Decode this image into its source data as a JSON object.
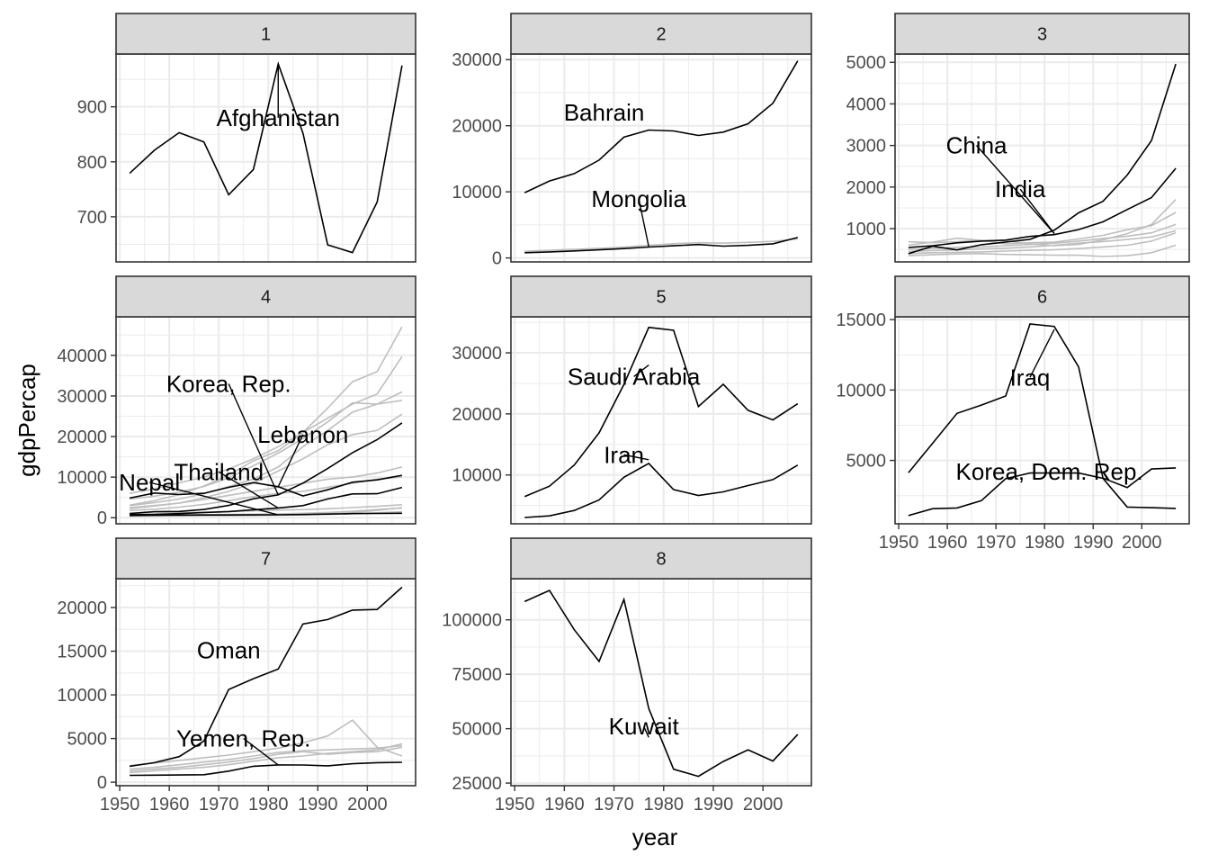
{
  "chart_data": {
    "type": "line",
    "xlabel": "year",
    "ylabel": "gdpPercap",
    "colors": {
      "highlight": "#000000",
      "background": "#bebebe",
      "strip": "#d9d9d9",
      "grid": "#ebebeb",
      "axis_text": "#4d4d4d"
    },
    "years": [
      1952,
      1957,
      1962,
      1967,
      1972,
      1977,
      1982,
      1987,
      1992,
      1997,
      2002,
      2007
    ],
    "x_ticks": [
      1950,
      1960,
      1970,
      1980,
      1990,
      2000
    ],
    "xlim": [
      1949.25,
      2009.75
    ],
    "panels": [
      {
        "strip": "1",
        "ylim": [
          618,
          996
        ],
        "y_ticks": [
          700,
          800,
          900
        ],
        "y_tick_labels": [
          "700",
          "800",
          "900"
        ],
        "highlight": [
          {
            "name": "Afghanistan",
            "values": [
              779,
              821,
              853,
              836,
              740,
              786,
              978,
              852,
              649,
              635,
              727,
              975
            ]
          }
        ],
        "background": [],
        "labels": [
          {
            "text": "Afghanistan",
            "x": 1982,
            "y": 880,
            "target_x": 1982,
            "target_y": 978
          }
        ]
      },
      {
        "strip": "2",
        "ylim": [
          -600,
          30850
        ],
        "y_ticks": [
          0,
          10000,
          20000,
          30000
        ],
        "y_tick_labels": [
          "0",
          "10000",
          "20000",
          "30000"
        ],
        "highlight": [
          {
            "name": "Bahrain",
            "values": [
              9867,
              11636,
              12753,
              14805,
              18269,
              19340,
              19211,
              18524,
              19036,
              20292,
              23404,
              29796
            ]
          },
          {
            "name": "Mongolia",
            "values": [
              786,
              912,
              1056,
              1226,
              1421,
              1648,
              1837,
              2024,
              1786,
              1902,
              2140,
              3096
            ]
          }
        ],
        "background": [
          [
            1000,
            1150,
            1300,
            1450,
            1650,
            1900,
            2150,
            2300,
            2250,
            2350,
            2500,
            2900
          ]
        ],
        "labels": [
          {
            "text": "Bahrain",
            "x": 1968,
            "y": 22000,
            "target_x": null,
            "target_y": null
          },
          {
            "text": "Mongolia",
            "x": 1975,
            "y": 8900,
            "target_x": 1977,
            "target_y": 1700
          }
        ]
      },
      {
        "strip": "3",
        "ylim": [
          200,
          5200
        ],
        "y_ticks": [
          1000,
          2000,
          3000,
          4000,
          5000
        ],
        "y_tick_labels": [
          "1000",
          "2000",
          "3000",
          "4000",
          "5000"
        ],
        "highlight": [
          {
            "name": "China",
            "values": [
              400,
              576,
              488,
              613,
              677,
              741,
              962,
              1379,
              1656,
              2289,
              3119,
              4959
            ]
          },
          {
            "name": "India",
            "values": [
              547,
              590,
              658,
              701,
              724,
              813,
              856,
              977,
              1164,
              1459,
              1747,
              2452
            ]
          }
        ],
        "background": [
          [
            684,
            662,
            686,
            722,
            630,
            660,
            677,
            751,
            838,
            973,
            1072,
            1391
          ],
          [
            605,
            677,
            770,
            717,
            708,
            630,
            590,
            620,
            730,
            880,
            1100,
            1700
          ],
          [
            500,
            520,
            550,
            560,
            590,
            620,
            650,
            700,
            760,
            820,
            900,
            1100
          ],
          [
            450,
            470,
            490,
            510,
            530,
            560,
            600,
            650,
            690,
            740,
            800,
            950
          ],
          [
            400,
            420,
            430,
            440,
            460,
            480,
            490,
            520,
            560,
            600,
            700,
            900
          ],
          [
            350,
            370,
            390,
            400,
            380,
            370,
            360,
            360,
            330,
            350,
            420,
            600
          ]
        ],
        "labels": [
          {
            "text": "China",
            "x": 1966,
            "y": 3000,
            "target_x": 1982,
            "target_y": 880
          },
          {
            "text": "India",
            "x": 1975,
            "y": 1950,
            "target_x": 1982,
            "target_y": 880
          }
        ]
      },
      {
        "strip": "4",
        "ylim": [
          -1500,
          49500
        ],
        "y_ticks": [
          0,
          10000,
          20000,
          30000,
          40000
        ],
        "y_tick_labels": [
          "0",
          "10000",
          "20000",
          "30000",
          "40000"
        ],
        "highlight": [
          {
            "name": "Korea, Rep.",
            "values": [
              1031,
              1488,
              1536,
              2029,
              3031,
              4657,
              5623,
              8533,
              12104,
              15994,
              19234,
              23348
            ]
          },
          {
            "name": "Lebanon",
            "values": [
              4835,
              6090,
              5716,
              6006,
              7486,
              8659,
              7641,
              5377,
              6891,
              8755,
              9314,
              10461
            ]
          },
          {
            "name": "Thailand",
            "values": [
              758,
              793,
              1002,
              1296,
              1524,
              1961,
              2393,
              2982,
              4617,
              5853,
              5914,
              7458
            ]
          },
          {
            "name": "Nepal",
            "values": [
              546,
              598,
              652,
              677,
              674,
              695,
              719,
              776,
              898,
              1011,
              1057,
              1091
            ]
          }
        ],
        "background": [
          [
            3100,
            4200,
            5700,
            7800,
            10500,
            14000,
            16500,
            21000,
            27000,
            33500,
            36000,
            47000
          ],
          [
            6000,
            7100,
            8600,
            10000,
            12000,
            14500,
            17500,
            21000,
            24500,
            28000,
            30500,
            39700
          ],
          [
            3000,
            3700,
            4600,
            5900,
            7700,
            9500,
            12500,
            17500,
            21500,
            26000,
            28000,
            31000
          ],
          [
            4600,
            5300,
            6300,
            7700,
            9800,
            12800,
            15900,
            19500,
            23600,
            28300,
            28000,
            28900
          ],
          [
            2300,
            2900,
            3600,
            4900,
            6500,
            8500,
            11500,
            14500,
            18000,
            20500,
            21500,
            25500
          ],
          [
            2500,
            3000,
            3600,
            4500,
            5500,
            6500,
            7500,
            8500,
            9500,
            10000,
            11000,
            12500
          ],
          [
            1800,
            2100,
            2600,
            3300,
            4200,
            5200,
            6000,
            6500,
            7500,
            8500,
            9500,
            10000
          ],
          [
            1000,
            1100,
            1200,
            1300,
            1500,
            1700,
            1900,
            2000,
            2200,
            2500,
            2800,
            3200
          ],
          [
            600,
            650,
            700,
            750,
            800,
            850,
            950,
            1100,
            1300,
            1600,
            2000,
            2400
          ],
          [
            500,
            550,
            600,
            650,
            700,
            750,
            800,
            900,
            1000,
            1300,
            1800,
            2500
          ],
          [
            400,
            420,
            450,
            480,
            500,
            550,
            600,
            700,
            800,
            1000,
            1200,
            1500
          ]
        ],
        "labels": [
          {
            "text": "Korea, Rep.",
            "x": 1972,
            "y": 33000,
            "target_x": 1982,
            "target_y": 5623
          },
          {
            "text": "Lebanon",
            "x": 1987,
            "y": 20500,
            "target_x": 1982,
            "target_y": 7641
          },
          {
            "text": "Thailand",
            "x": 1970,
            "y": 11300,
            "target_x": 1982,
            "target_y": 2393
          },
          {
            "text": "Nepal",
            "x": 1956,
            "y": 8700,
            "target_x": 1982,
            "target_y": 719
          }
        ]
      },
      {
        "strip": "5",
        "ylim": [
          2000,
          35900
        ],
        "y_ticks": [
          10000,
          20000,
          30000
        ],
        "y_tick_labels": [
          "10000",
          "20000",
          "30000"
        ],
        "highlight": [
          {
            "name": "Saudi Arabia",
            "values": [
              6460,
              8157,
              11627,
              16903,
              24837,
              34168,
              33693,
              21199,
              24841,
              20586,
              19014,
              21655
            ]
          },
          {
            "name": "Iran",
            "values": [
              3035,
              3291,
              4187,
              5907,
              9614,
              11889,
              7608,
              6642,
              7236,
              8264,
              9241,
              11606
            ]
          }
        ],
        "background": [],
        "labels": [
          {
            "text": "Saudi Arabia",
            "x": 1974,
            "y": 26100,
            "target_x": 1977,
            "target_y": 28000
          },
          {
            "text": "Iran",
            "x": 1972,
            "y": 13300,
            "target_x": 1977,
            "target_y": 12500
          }
        ]
      },
      {
        "strip": "6",
        "ylim": [
          500,
          15200
        ],
        "y_ticks": [
          5000,
          10000,
          15000
        ],
        "y_tick_labels": [
          "5000",
          "10000",
          "15000"
        ],
        "highlight": [
          {
            "name": "Iraq",
            "values": [
              4130,
              6229,
              8342,
              8931,
              9576,
              14688,
              14517,
              11644,
              3746,
              3077,
              4391,
              4471
            ]
          },
          {
            "name": "Korea, Dem. Rep.",
            "values": [
              1088,
              1571,
              1622,
              2144,
              3702,
              4106,
              4107,
              4107,
              3726,
              1690,
              1647,
              1593
            ]
          }
        ],
        "background": [],
        "labels": [
          {
            "text": "Iraq",
            "x": 1977,
            "y": 10900,
            "target_x": 1982,
            "target_y": 14300
          },
          {
            "text": "Korea, Dem. Rep.",
            "x": 1981,
            "y": 4200,
            "target_x": null,
            "target_y": null
          }
        ]
      },
      {
        "strip": "7",
        "ylim": [
          -400,
          23300
        ],
        "y_ticks": [
          0,
          5000,
          10000,
          15000,
          20000
        ],
        "y_tick_labels": [
          "0",
          "5000",
          "10000",
          "15000",
          "20000"
        ],
        "highlight": [
          {
            "name": "Oman",
            "values": [
              1828,
              2243,
              2924,
              4721,
              10618,
              11848,
              12955,
              18115,
              18617,
              19702,
              19775,
              22316
            ]
          },
          {
            "name": "Yemen, Rep.",
            "values": [
              781,
              805,
              826,
              862,
              1265,
              1830,
              1977,
              1971,
              1879,
              2117,
              2235,
              2281
            ]
          }
        ],
        "background": [
          [
            1900,
            2200,
            2500,
            2800,
            3100,
            3500,
            3900,
            4500,
            5300,
            7100,
            4000,
            3000
          ],
          [
            1500,
            1700,
            2000,
            2300,
            2600,
            3000,
            3400,
            3600,
            3700,
            3800,
            3900,
            4200
          ],
          [
            1300,
            1500,
            1700,
            2000,
            2300,
            2700,
            3200,
            3500,
            3200,
            3400,
            3500,
            4000
          ],
          [
            1100,
            1300,
            1500,
            1700,
            2000,
            2400,
            2800,
            3000,
            3300,
            3500,
            3700,
            4400
          ]
        ],
        "labels": [
          {
            "text": "Oman",
            "x": 1972,
            "y": 15100,
            "target_x": null,
            "target_y": null
          },
          {
            "text": "Yemen, Rep.",
            "x": 1975,
            "y": 5000,
            "target_x": 1982,
            "target_y": 1977
          }
        ]
      },
      {
        "strip": "8",
        "ylim": [
          23800,
          118900
        ],
        "y_ticks": [
          25000,
          50000,
          75000,
          100000
        ],
        "y_tick_labels": [
          "25000",
          "50000",
          "75000",
          "100000"
        ],
        "highlight": [
          {
            "name": "Kuwait",
            "values": [
              108382,
              113523,
              95458,
              80895,
              109348,
              59265,
              31354,
              28118,
              34933,
              40301,
              35110,
              47307
            ]
          }
        ],
        "background": [],
        "labels": [
          {
            "text": "Kuwait",
            "x": 1976,
            "y": 51000,
            "target_x": 1977,
            "target_y": 46000
          }
        ]
      }
    ]
  }
}
